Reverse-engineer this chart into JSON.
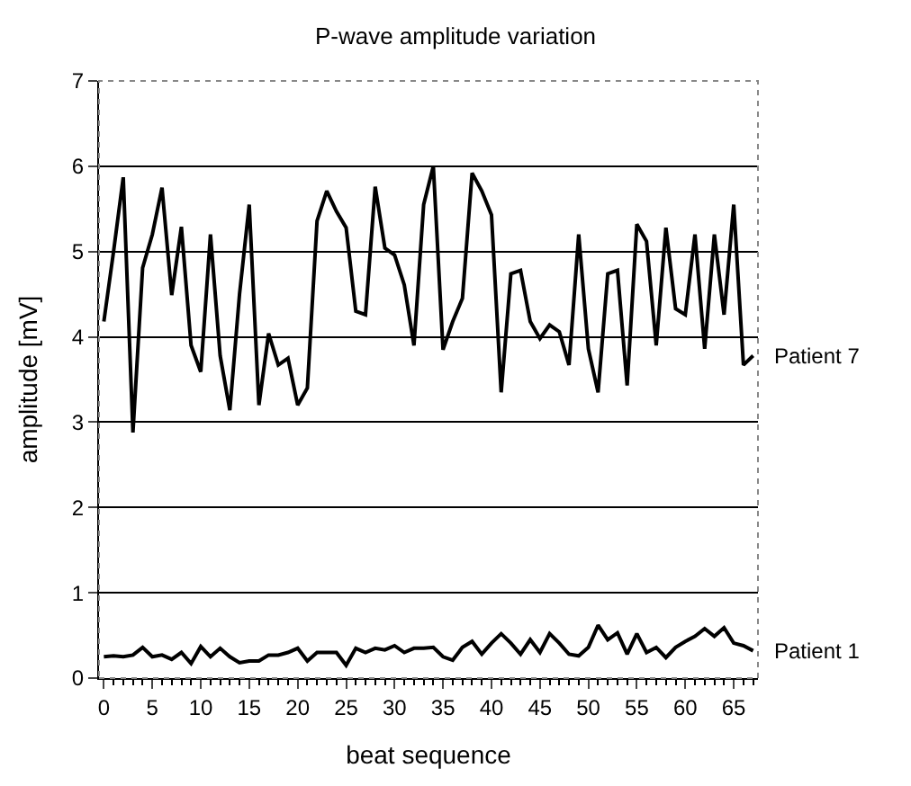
{
  "chart_data": {
    "type": "line",
    "title": "P-wave amplitude variation",
    "xlabel": "beat sequence",
    "ylabel": "amplitude [mV]",
    "x": [
      0,
      1,
      2,
      3,
      4,
      5,
      6,
      7,
      8,
      9,
      10,
      11,
      12,
      13,
      14,
      15,
      16,
      17,
      18,
      19,
      20,
      21,
      22,
      23,
      24,
      25,
      26,
      27,
      28,
      29,
      30,
      31,
      32,
      33,
      34,
      35,
      36,
      37,
      38,
      39,
      40,
      41,
      42,
      43,
      44,
      45,
      46,
      47,
      48,
      49,
      50,
      51,
      52,
      53,
      54,
      55,
      56,
      57,
      58,
      59,
      60,
      61,
      62,
      63,
      64,
      65,
      66,
      67
    ],
    "series": [
      {
        "name": "Patient 7",
        "color": "#000000",
        "values": [
          4.18,
          5.0,
          5.87,
          2.88,
          4.81,
          5.2,
          5.75,
          4.49,
          5.29,
          3.9,
          3.59,
          5.2,
          3.78,
          3.14,
          4.5,
          5.55,
          3.2,
          4.04,
          3.67,
          3.75,
          3.2,
          3.4,
          5.36,
          5.71,
          5.47,
          5.28,
          4.3,
          4.26,
          5.76,
          5.04,
          4.96,
          4.61,
          3.9,
          5.55,
          6.0,
          3.85,
          4.18,
          4.45,
          5.92,
          5.71,
          5.43,
          3.35,
          4.74,
          4.78,
          4.18,
          3.98,
          4.14,
          4.06,
          3.67,
          5.2,
          3.86,
          3.35,
          4.74,
          4.78,
          3.43,
          5.32,
          5.12,
          3.9,
          5.28,
          4.33,
          4.26,
          5.2,
          3.86,
          5.2,
          4.26,
          5.55,
          3.67,
          3.78
        ]
      },
      {
        "name": "Patient 1",
        "color": "#000000",
        "values": [
          0.25,
          0.26,
          0.25,
          0.27,
          0.36,
          0.25,
          0.27,
          0.22,
          0.3,
          0.17,
          0.37,
          0.25,
          0.35,
          0.25,
          0.18,
          0.2,
          0.2,
          0.27,
          0.27,
          0.3,
          0.35,
          0.2,
          0.3,
          0.3,
          0.3,
          0.15,
          0.35,
          0.3,
          0.35,
          0.33,
          0.38,
          0.3,
          0.35,
          0.35,
          0.36,
          0.25,
          0.21,
          0.36,
          0.43,
          0.28,
          0.41,
          0.52,
          0.41,
          0.28,
          0.45,
          0.3,
          0.52,
          0.41,
          0.28,
          0.26,
          0.36,
          0.62,
          0.45,
          0.53,
          0.28,
          0.52,
          0.3,
          0.36,
          0.24,
          0.36,
          0.43,
          0.49,
          0.58,
          0.49,
          0.59,
          0.41,
          0.38,
          0.32
        ]
      }
    ],
    "xlim": [
      -0.5,
      67.5
    ],
    "xticks": [
      0,
      5,
      10,
      15,
      20,
      25,
      30,
      35,
      40,
      45,
      50,
      55,
      60,
      65
    ],
    "ylim": [
      0,
      7
    ],
    "yticks": [
      0,
      1,
      2,
      3,
      4,
      5,
      6,
      7
    ],
    "grid": "y",
    "legend": false,
    "marker": "none",
    "line_style": "solid"
  }
}
